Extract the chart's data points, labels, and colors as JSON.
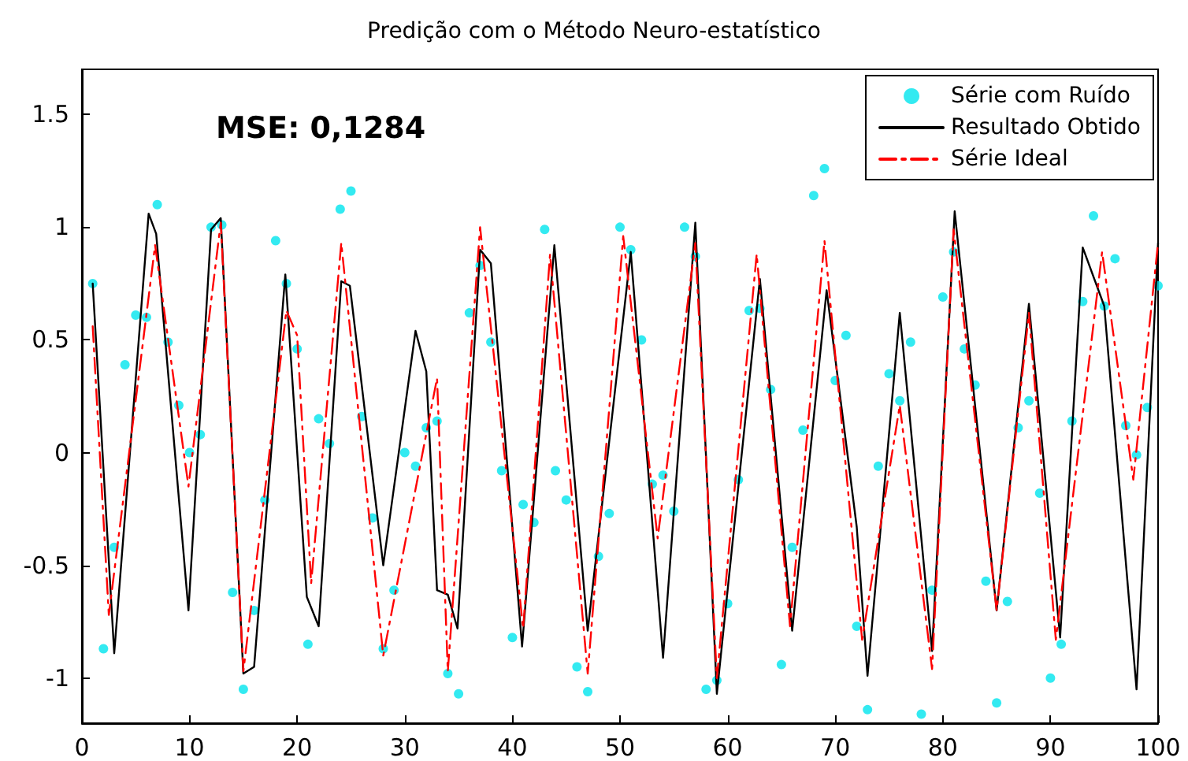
{
  "chart_data": {
    "type": "line",
    "title": "Predição com o Método Neuro-estatístico",
    "annotations": [
      "MSE: 0,1284"
    ],
    "xlim": [
      0,
      100
    ],
    "xticks": [
      0,
      10,
      20,
      30,
      40,
      50,
      60,
      70,
      80,
      90,
      100
    ],
    "ylim": [
      -1.2,
      1.7
    ],
    "yticks": [
      -1,
      -0.5,
      0,
      0.5,
      1,
      1.5
    ],
    "grid": false,
    "legend": "top right",
    "series": [
      {
        "name": "Série com Ruído",
        "type": "scatter",
        "marker": "circle",
        "color": "#00e5ee",
        "x": [
          1,
          2,
          3,
          4,
          5,
          6,
          7,
          8,
          9,
          10,
          11,
          12,
          13,
          14,
          15,
          16,
          17,
          18,
          19,
          20,
          21,
          22,
          23,
          24,
          25,
          26,
          27,
          28,
          29,
          30,
          31,
          32,
          33,
          34,
          35,
          36,
          37,
          38,
          39,
          40,
          41,
          42,
          43,
          44,
          45,
          46,
          47,
          48,
          49,
          50,
          51,
          52,
          53,
          54,
          55,
          56,
          57,
          58,
          59,
          60,
          61,
          62,
          63,
          64,
          65,
          66,
          67,
          68,
          69,
          70,
          71,
          72,
          73,
          74,
          75,
          76,
          77,
          78,
          79,
          80,
          81,
          82,
          83,
          84,
          85,
          86,
          87,
          88,
          89,
          90,
          91,
          92,
          93,
          94,
          95,
          96,
          97,
          98,
          99,
          100
        ],
        "values": [
          0.75,
          -0.87,
          -0.42,
          0.39,
          0.61,
          0.6,
          1.1,
          0.49,
          0.21,
          0,
          0.08,
          1,
          1.01,
          -0.62,
          -1.05,
          -0.7,
          -0.21,
          0.94,
          0.75,
          0.46,
          -0.85,
          0.15,
          0.04,
          1.08,
          1.16,
          0.16,
          -0.29,
          -0.87,
          -0.61,
          0,
          -0.06,
          0.11,
          0.14,
          -0.98,
          -1.07,
          0.62,
          0.83,
          0.49,
          -0.08,
          -0.82,
          -0.23,
          -0.31,
          0.99,
          -0.08,
          -0.21,
          -0.95,
          -1.06,
          -0.46,
          -0.27,
          1,
          0.9,
          0.5,
          -0.14,
          -0.1,
          -0.26,
          1,
          0.87,
          -1.05,
          -1.01,
          -0.67,
          -0.12,
          0.63,
          0.64,
          0.28,
          -0.94,
          -0.42,
          0.1,
          1.14,
          1.26,
          0.32,
          0.52,
          -0.77,
          -1.14,
          -0.06,
          0.35,
          0.23,
          0.49,
          -1.16,
          -0.61,
          0.69,
          0.89,
          0.46,
          0.3,
          -0.57,
          -1.11,
          -0.66,
          0.11,
          0.23,
          -0.18,
          -1,
          -0.85,
          0.14,
          0.67,
          1.05,
          0.65,
          0.86,
          0.12,
          -0.01,
          0.2,
          0.74
        ]
      },
      {
        "name": "Resultado Obtido",
        "marker": "none",
        "line_style": "solid",
        "color": "#000000",
        "x": [
          1,
          3,
          6.2,
          6.9,
          9.9,
          12,
          12.9,
          15,
          16,
          18.9,
          20.9,
          22,
          24.1,
          24.9,
          28,
          31,
          32,
          33,
          34,
          34.9,
          37,
          38,
          40.9,
          43.9,
          47,
          51,
          54,
          57,
          59,
          63,
          66,
          69.2,
          72,
          73,
          76,
          79,
          81.1,
          85,
          88,
          90.9,
          93,
          95,
          98,
          100
        ],
        "values": [
          0.75,
          -0.89,
          1.06,
          0.97,
          -0.7,
          0.99,
          1.04,
          -0.98,
          -0.95,
          0.79,
          -0.64,
          -0.77,
          0.76,
          0.74,
          -0.5,
          0.54,
          0.36,
          -0.61,
          -0.63,
          -0.78,
          0.9,
          0.84,
          -0.86,
          0.92,
          -0.79,
          0.89,
          -0.91,
          1.02,
          -1.07,
          0.77,
          -0.79,
          0.72,
          -0.33,
          -0.99,
          0.62,
          -0.88,
          1.07,
          -0.7,
          0.66,
          -0.82,
          0.91,
          0.65,
          -1.05,
          0.93
        ]
      },
      {
        "name": "Série Ideal",
        "marker": "none",
        "line_style": "dashed",
        "color": "#ff0000",
        "x": [
          1,
          2.5,
          6.8,
          9.9,
          12.9,
          15,
          19,
          20,
          21.3,
          24.1,
          28,
          33,
          34,
          37,
          41,
          43.5,
          47,
          50.3,
          53.5,
          57,
          59,
          62.7,
          65.8,
          69,
          72.5,
          76,
          79,
          81,
          85,
          88,
          90.5,
          94.8,
          97.7,
          100
        ],
        "values": [
          0.56,
          -0.72,
          0.92,
          -0.15,
          1.02,
          -0.97,
          0.63,
          0.52,
          -0.58,
          0.93,
          -0.9,
          0.33,
          -0.97,
          1.0,
          -0.78,
          0.88,
          -0.98,
          0.96,
          -0.38,
          0.93,
          -1.0,
          0.88,
          -0.77,
          0.94,
          -0.83,
          0.21,
          -0.96,
          0.99,
          -0.7,
          0.62,
          -0.83,
          0.89,
          -0.12,
          0.93
        ]
      }
    ]
  }
}
